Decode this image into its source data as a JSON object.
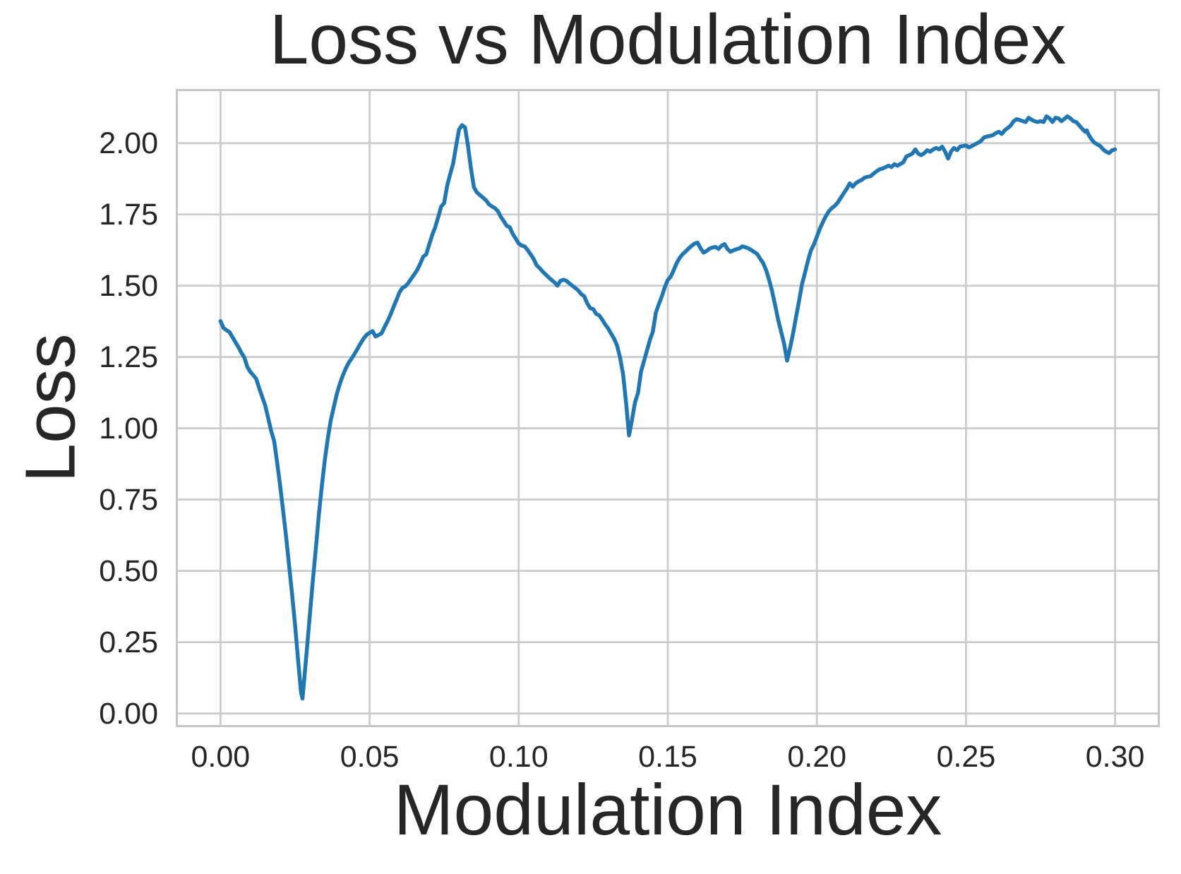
{
  "chart_data": {
    "type": "line",
    "title": "Loss vs Modulation Index",
    "xlabel": "Modulation Index",
    "ylabel": "Loss",
    "grid": true,
    "legend": "none",
    "xlim": [
      -0.015,
      0.315
    ],
    "ylim": [
      -0.048,
      2.19
    ],
    "x_ticks": [
      0.0,
      0.05,
      0.1,
      0.15,
      0.2,
      0.25,
      0.3
    ],
    "x_tick_labels": [
      "0.00",
      "0.05",
      "0.10",
      "0.15",
      "0.20",
      "0.25",
      "0.30"
    ],
    "y_ticks": [
      0.0,
      0.25,
      0.5,
      0.75,
      1.0,
      1.25,
      1.5,
      1.75,
      2.0
    ],
    "y_tick_labels": [
      "0.00",
      "0.25",
      "0.50",
      "0.75",
      "1.00",
      "1.25",
      "1.50",
      "1.75",
      "2.00"
    ],
    "colors": {
      "line": "#1f77b4",
      "grid": "#cccccc",
      "spine": "#c6c6c6",
      "text": "#262626",
      "background": "#ffffff"
    },
    "series": [
      {
        "name": "Loss",
        "x": [
          0.0,
          0.001,
          0.002,
          0.003,
          0.004,
          0.005,
          0.006,
          0.007,
          0.008,
          0.009,
          0.01,
          0.011,
          0.012,
          0.013,
          0.014,
          0.015,
          0.016,
          0.017,
          0.018,
          0.019,
          0.02,
          0.021,
          0.022,
          0.023,
          0.024,
          0.025,
          0.026,
          0.027,
          0.0275,
          0.028,
          0.029,
          0.03,
          0.031,
          0.032,
          0.033,
          0.034,
          0.035,
          0.036,
          0.037,
          0.038,
          0.039,
          0.04,
          0.041,
          0.042,
          0.043,
          0.044,
          0.045,
          0.046,
          0.047,
          0.048,
          0.049,
          0.05,
          0.051,
          0.052,
          0.053,
          0.054,
          0.055,
          0.056,
          0.057,
          0.058,
          0.059,
          0.06,
          0.061,
          0.062,
          0.063,
          0.064,
          0.065,
          0.066,
          0.067,
          0.068,
          0.069,
          0.07,
          0.071,
          0.072,
          0.073,
          0.074,
          0.075,
          0.076,
          0.077,
          0.078,
          0.079,
          0.08,
          0.081,
          0.082,
          0.083,
          0.084,
          0.085,
          0.086,
          0.087,
          0.088,
          0.089,
          0.09,
          0.091,
          0.092,
          0.093,
          0.094,
          0.095,
          0.096,
          0.097,
          0.098,
          0.099,
          0.1,
          0.101,
          0.102,
          0.103,
          0.104,
          0.105,
          0.106,
          0.107,
          0.108,
          0.109,
          0.11,
          0.111,
          0.112,
          0.113,
          0.114,
          0.115,
          0.116,
          0.117,
          0.118,
          0.119,
          0.12,
          0.121,
          0.122,
          0.123,
          0.124,
          0.125,
          0.126,
          0.127,
          0.128,
          0.129,
          0.13,
          0.131,
          0.132,
          0.133,
          0.134,
          0.135,
          0.136,
          0.137,
          0.138,
          0.139,
          0.14,
          0.141,
          0.142,
          0.143,
          0.144,
          0.145,
          0.146,
          0.147,
          0.148,
          0.149,
          0.15,
          0.151,
          0.152,
          0.153,
          0.154,
          0.155,
          0.156,
          0.157,
          0.158,
          0.159,
          0.16,
          0.161,
          0.162,
          0.163,
          0.164,
          0.165,
          0.166,
          0.167,
          0.168,
          0.169,
          0.17,
          0.171,
          0.172,
          0.173,
          0.174,
          0.175,
          0.176,
          0.177,
          0.178,
          0.179,
          0.18,
          0.181,
          0.182,
          0.183,
          0.184,
          0.185,
          0.186,
          0.187,
          0.188,
          0.189,
          0.19,
          0.191,
          0.192,
          0.193,
          0.194,
          0.195,
          0.196,
          0.197,
          0.198,
          0.199,
          0.2,
          0.201,
          0.202,
          0.203,
          0.204,
          0.205,
          0.206,
          0.207,
          0.208,
          0.209,
          0.21,
          0.211,
          0.212,
          0.213,
          0.214,
          0.215,
          0.216,
          0.217,
          0.218,
          0.219,
          0.22,
          0.221,
          0.222,
          0.223,
          0.224,
          0.225,
          0.226,
          0.227,
          0.228,
          0.229,
          0.23,
          0.231,
          0.232,
          0.233,
          0.234,
          0.235,
          0.236,
          0.237,
          0.238,
          0.239,
          0.24,
          0.241,
          0.242,
          0.243,
          0.244,
          0.245,
          0.246,
          0.247,
          0.248,
          0.249,
          0.25,
          0.251,
          0.252,
          0.253,
          0.254,
          0.255,
          0.256,
          0.257,
          0.258,
          0.259,
          0.26,
          0.261,
          0.262,
          0.263,
          0.264,
          0.265,
          0.266,
          0.267,
          0.268,
          0.269,
          0.27,
          0.271,
          0.272,
          0.273,
          0.274,
          0.275,
          0.276,
          0.277,
          0.278,
          0.279,
          0.28,
          0.281,
          0.282,
          0.283,
          0.284,
          0.285,
          0.286,
          0.287,
          0.288,
          0.289,
          0.29,
          0.2905,
          0.291,
          0.292,
          0.293,
          0.294,
          0.295,
          0.296,
          0.297,
          0.298,
          0.299,
          0.3
        ],
        "y": [
          1.376,
          1.352,
          1.344,
          1.338,
          1.32,
          1.302,
          1.285,
          1.265,
          1.248,
          1.215,
          1.198,
          1.186,
          1.173,
          1.14,
          1.11,
          1.08,
          1.035,
          0.99,
          0.955,
          0.88,
          0.8,
          0.71,
          0.62,
          0.52,
          0.42,
          0.31,
          0.19,
          0.075,
          0.052,
          0.11,
          0.23,
          0.35,
          0.47,
          0.58,
          0.7,
          0.8,
          0.89,
          0.965,
          1.03,
          1.075,
          1.12,
          1.155,
          1.185,
          1.21,
          1.23,
          1.245,
          1.262,
          1.28,
          1.298,
          1.315,
          1.328,
          1.335,
          1.341,
          1.322,
          1.327,
          1.333,
          1.355,
          1.375,
          1.398,
          1.425,
          1.45,
          1.476,
          1.492,
          1.498,
          1.51,
          1.525,
          1.54,
          1.556,
          1.578,
          1.602,
          1.61,
          1.645,
          1.678,
          1.705,
          1.74,
          1.778,
          1.79,
          1.85,
          1.89,
          1.928,
          1.99,
          2.048,
          2.063,
          2.055,
          1.99,
          1.91,
          1.845,
          1.827,
          1.818,
          1.809,
          1.8,
          1.786,
          1.778,
          1.772,
          1.762,
          1.742,
          1.726,
          1.71,
          1.705,
          1.682,
          1.665,
          1.648,
          1.641,
          1.638,
          1.625,
          1.61,
          1.594,
          1.572,
          1.562,
          1.55,
          1.54,
          1.53,
          1.52,
          1.512,
          1.5,
          1.517,
          1.521,
          1.517,
          1.508,
          1.5,
          1.492,
          1.483,
          1.47,
          1.463,
          1.438,
          1.421,
          1.418,
          1.401,
          1.396,
          1.381,
          1.364,
          1.35,
          1.332,
          1.314,
          1.29,
          1.248,
          1.19,
          1.09,
          0.975,
          1.03,
          1.09,
          1.124,
          1.198,
          1.235,
          1.272,
          1.31,
          1.34,
          1.406,
          1.435,
          1.463,
          1.495,
          1.52,
          1.532,
          1.555,
          1.58,
          1.598,
          1.611,
          1.62,
          1.631,
          1.64,
          1.648,
          1.651,
          1.631,
          1.616,
          1.622,
          1.63,
          1.634,
          1.636,
          1.629,
          1.64,
          1.646,
          1.629,
          1.619,
          1.624,
          1.628,
          1.631,
          1.638,
          1.635,
          1.631,
          1.625,
          1.618,
          1.611,
          1.594,
          1.579,
          1.554,
          1.52,
          1.48,
          1.431,
          1.381,
          1.339,
          1.297,
          1.237,
          1.282,
          1.332,
          1.389,
          1.446,
          1.505,
          1.545,
          1.587,
          1.624,
          1.645,
          1.672,
          1.7,
          1.723,
          1.744,
          1.761,
          1.772,
          1.78,
          1.792,
          1.808,
          1.824,
          1.84,
          1.859,
          1.847,
          1.859,
          1.866,
          1.871,
          1.879,
          1.882,
          1.884,
          1.893,
          1.901,
          1.908,
          1.911,
          1.916,
          1.921,
          1.916,
          1.926,
          1.921,
          1.927,
          1.933,
          1.953,
          1.958,
          1.963,
          1.978,
          1.963,
          1.958,
          1.965,
          1.975,
          1.97,
          1.978,
          1.983,
          1.978,
          1.988,
          1.97,
          1.946,
          1.971,
          1.983,
          1.975,
          1.988,
          1.99,
          1.992,
          1.985,
          1.99,
          1.996,
          2.001,
          2.007,
          2.02,
          2.023,
          2.025,
          2.028,
          2.035,
          2.04,
          2.032,
          2.045,
          2.053,
          2.062,
          2.077,
          2.084,
          2.081,
          2.077,
          2.074,
          2.089,
          2.082,
          2.077,
          2.074,
          2.077,
          2.074,
          2.094,
          2.087,
          2.074,
          2.089,
          2.087,
          2.077,
          2.085,
          2.094,
          2.087,
          2.077,
          2.074,
          2.062,
          2.05,
          2.04,
          2.045,
          2.032,
          2.015,
          2.002,
          1.996,
          1.99,
          1.978,
          1.97,
          1.965,
          1.975,
          1.978
        ]
      }
    ]
  }
}
